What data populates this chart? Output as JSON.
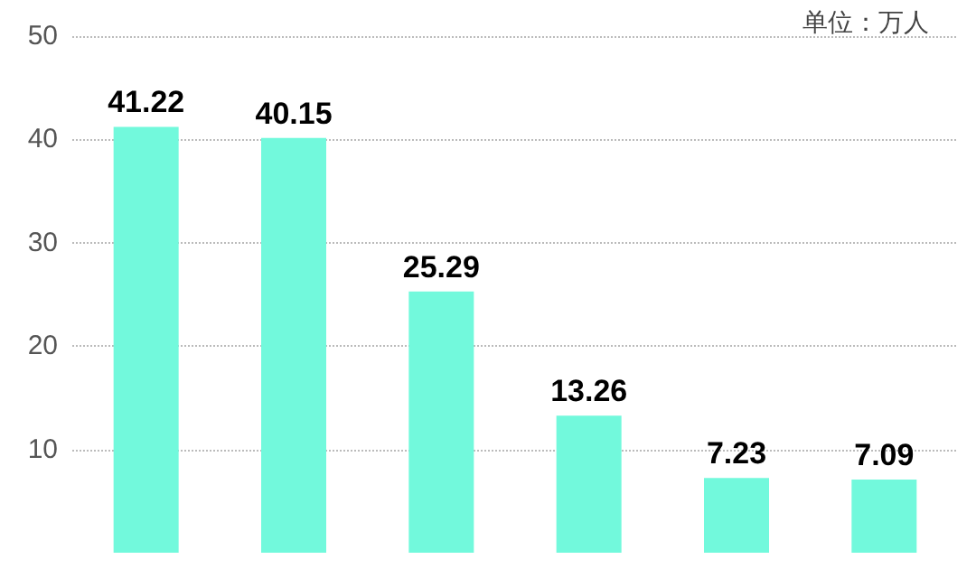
{
  "chart_data": {
    "type": "bar",
    "categories": [
      null,
      null,
      null,
      null,
      null,
      null
    ],
    "values": [
      41.22,
      40.15,
      25.29,
      13.26,
      7.23,
      7.09
    ],
    "color": "#72f9dc",
    "ylim": [
      0,
      50
    ],
    "yticks": [
      10,
      20,
      30,
      40,
      50
    ],
    "grid": "y",
    "data_labels": true,
    "annotations": [
      "单位：万人"
    ]
  }
}
